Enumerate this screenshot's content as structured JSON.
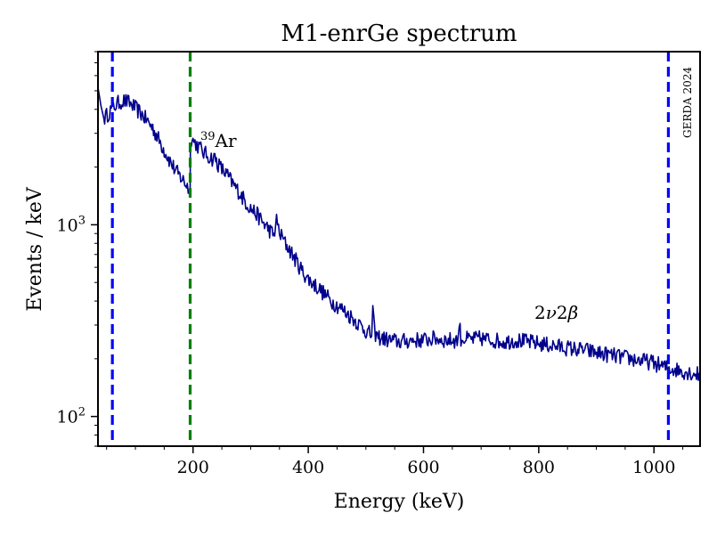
{
  "chart_data": {
    "type": "line",
    "title": "M1-enrGe spectrum",
    "xlabel": "Energy (keV)",
    "ylabel": "Events / keV",
    "xscale": "linear",
    "yscale": "log",
    "xlim": [
      35,
      1080
    ],
    "ylim": [
      70,
      8000
    ],
    "xticks": [
      {
        "value": 200,
        "label": "200"
      },
      {
        "value": 400,
        "label": "400"
      },
      {
        "value": 600,
        "label": "600"
      },
      {
        "value": 800,
        "label": "800"
      },
      {
        "value": 1000,
        "label": "1000"
      }
    ],
    "yticks": [
      {
        "value": 100,
        "label": "10",
        "sup": "2"
      },
      {
        "value": 1000,
        "label": "10",
        "sup": "3"
      }
    ],
    "watermark": "GERDA 2024",
    "series": [
      {
        "name": "M1-enrGe",
        "color": "#00008b",
        "x": [
          35,
          40,
          45,
          50,
          55,
          60,
          65,
          70,
          75,
          80,
          85,
          90,
          95,
          100,
          110,
          120,
          130,
          140,
          150,
          160,
          170,
          180,
          190,
          195,
          195.5,
          200,
          205,
          210,
          215,
          220,
          225,
          230,
          235,
          238,
          242,
          250,
          260,
          270,
          280,
          290,
          300,
          310,
          320,
          330,
          340,
          345,
          350,
          352,
          355,
          360,
          370,
          380,
          390,
          400,
          420,
          440,
          460,
          480,
          500,
          510,
          512,
          515,
          520,
          530,
          540,
          560,
          580,
          600,
          620,
          640,
          660,
          662,
          665,
          680,
          700,
          720,
          740,
          760,
          780,
          800,
          820,
          840,
          860,
          880,
          900,
          920,
          940,
          960,
          980,
          1000,
          1020,
          1040,
          1060,
          1080
        ],
        "y": [
          5200,
          4200,
          3600,
          3700,
          3900,
          4050,
          4200,
          4300,
          4400,
          4420,
          4380,
          4300,
          4200,
          4050,
          3800,
          3500,
          3200,
          2800,
          2450,
          2150,
          1900,
          1750,
          1600,
          1500,
          2850,
          2750,
          2650,
          2550,
          2450,
          2350,
          2300,
          2250,
          2200,
          2250,
          2100,
          1950,
          1800,
          1620,
          1480,
          1330,
          1220,
          1140,
          1040,
          960,
          880,
          1050,
          920,
          880,
          860,
          800,
          720,
          640,
          570,
          520,
          460,
          400,
          360,
          320,
          280,
          265,
          360,
          275,
          260,
          255,
          250,
          245,
          250,
          250,
          255,
          250,
          250,
          310,
          255,
          252,
          255,
          250,
          245,
          250,
          245,
          240,
          235,
          230,
          225,
          222,
          215,
          210,
          205,
          200,
          195,
          190,
          180,
          175,
          170,
          165
        ]
      }
    ],
    "vlines": [
      {
        "x": 60,
        "color": "#0000ff",
        "style": "dashed"
      },
      {
        "x": 195,
        "color": "#008000",
        "style": "dashed"
      },
      {
        "x": 1025,
        "color": "#0000ff",
        "style": "dashed"
      }
    ],
    "annotations": [
      {
        "label": "39Ar",
        "sup": "39",
        "base": "Ar",
        "x": 205,
        "y": 2900
      },
      {
        "label": "2ν2β",
        "pre": "2",
        "nu": "ν",
        "mid": "2",
        "beta": "β",
        "x": 795,
        "y": 330
      }
    ]
  }
}
